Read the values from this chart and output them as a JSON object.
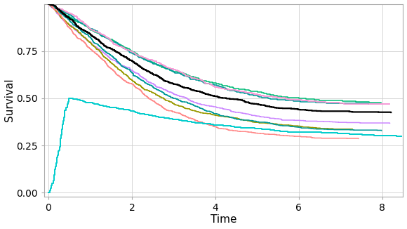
{
  "title": "",
  "xlabel": "Time",
  "ylabel": "Survival",
  "xlim": [
    -0.1,
    8.5
  ],
  "ylim": [
    -0.02,
    1.0
  ],
  "xticks": [
    0,
    2,
    4,
    6,
    8
  ],
  "yticks": [
    0.0,
    0.25,
    0.5,
    0.75
  ],
  "grid_color": "#d0d0d0",
  "background_color": "#ffffff",
  "colors": {
    "black": "#000000",
    "cyan": "#00CCCC",
    "pink": "#FF99CC",
    "olive": "#999900",
    "salmon": "#FF8888",
    "teal": "#009999",
    "violet": "#CC88FF",
    "green": "#00CC66",
    "darktan": "#BBAA44"
  },
  "lw_main": 1.6,
  "lw_band": 1.1
}
